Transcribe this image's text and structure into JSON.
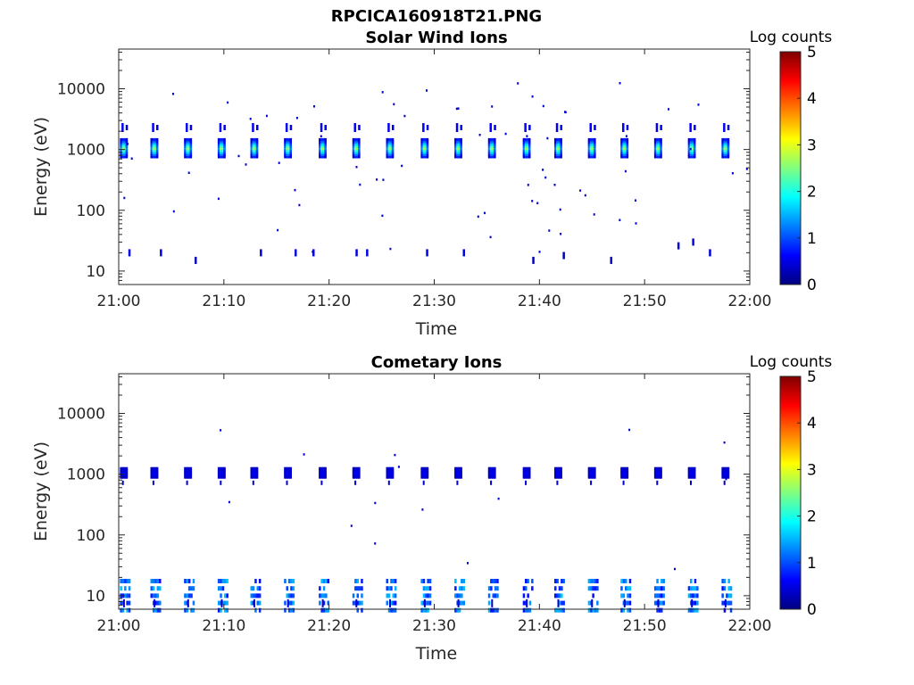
{
  "figure_title": "RPCICA160918T21.PNG",
  "chart_data": [
    {
      "type": "heatmap",
      "title": "Solar Wind Ions",
      "xlabel": "Time",
      "ylabel": "Energy (eV)",
      "xticks": [
        "21:00",
        "21:10",
        "21:20",
        "21:30",
        "21:40",
        "21:50",
        "22:00"
      ],
      "xlim_minutes": [
        0,
        60
      ],
      "yscale": "log",
      "yticks": [
        "10",
        "100",
        "1000",
        "10000"
      ],
      "ylim": [
        6,
        45000
      ],
      "colorbar": {
        "label": "Log counts",
        "ticks": [
          "0",
          "1",
          "2",
          "3",
          "4",
          "5"
        ],
        "range": [
          0,
          5
        ],
        "colormap": "jet"
      },
      "bursts_minutes": [
        0.2,
        3.1,
        6.3,
        9.5,
        12.6,
        15.8,
        19.1,
        22.3,
        25.5,
        28.8,
        32.0,
        35.2,
        38.5,
        41.5,
        44.7,
        47.8,
        51.0,
        54.2,
        57.4
      ],
      "burst_core_energy_ev": 1050,
      "burst_peak_log_counts": 2.6,
      "low_energy_events": [
        [
          1.0,
          20,
          0.5
        ],
        [
          4.0,
          20,
          0.5
        ],
        [
          7.3,
          15,
          0.3
        ],
        [
          13.5,
          20,
          0.4
        ],
        [
          16.8,
          20,
          0.5
        ],
        [
          18.5,
          20,
          0.5
        ],
        [
          22.6,
          20,
          0.5
        ],
        [
          23.6,
          20,
          0.5
        ],
        [
          29.3,
          20,
          0.5
        ],
        [
          32.8,
          20,
          0.5
        ],
        [
          39.4,
          15,
          0.3
        ],
        [
          42.3,
          18,
          0.2
        ],
        [
          46.8,
          15,
          0.3
        ],
        [
          56.2,
          20,
          0.5
        ],
        [
          53.2,
          26,
          0.5
        ],
        [
          54.6,
          30,
          0.5
        ]
      ]
    },
    {
      "type": "heatmap",
      "title": "Cometary Ions",
      "xlabel": "Time",
      "ylabel": "Energy (eV)",
      "xticks": [
        "21:00",
        "21:10",
        "21:20",
        "21:30",
        "21:40",
        "21:50",
        "22:00"
      ],
      "xlim_minutes": [
        0,
        60
      ],
      "yscale": "log",
      "yticks": [
        "10",
        "100",
        "1000",
        "10000"
      ],
      "ylim": [
        6,
        45000
      ],
      "colorbar": {
        "label": "Log counts",
        "ticks": [
          "0",
          "1",
          "2",
          "3",
          "4",
          "5"
        ],
        "range": [
          0,
          5
        ],
        "colormap": "jet"
      },
      "bursts_minutes": [
        0.2,
        3.1,
        6.3,
        9.5,
        12.6,
        15.8,
        19.1,
        22.3,
        25.5,
        28.8,
        32.0,
        35.2,
        38.5,
        41.5,
        44.7,
        47.8,
        51.0,
        54.2,
        57.4
      ],
      "burst_core_energy_ev": 1050,
      "burst_peak_log_counts": 0.6,
      "low_energy_band_ev": [
        8,
        28
      ],
      "low_energy_peak_log_counts": 1.6
    }
  ]
}
